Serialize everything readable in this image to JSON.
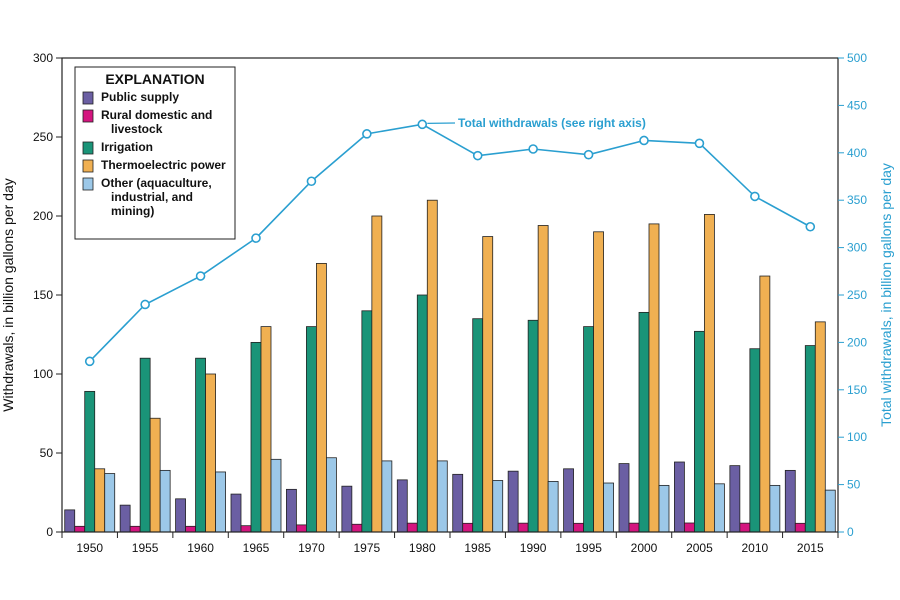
{
  "chart_data": {
    "type": "bar",
    "categories": [
      "1950",
      "1955",
      "1960",
      "1965",
      "1970",
      "1975",
      "1980",
      "1985",
      "1990",
      "1995",
      "2000",
      "2005",
      "2010",
      "2015"
    ],
    "series": [
      {
        "name": "Public supply",
        "color": "#6b5fa3",
        "axis": "left",
        "type": "bar",
        "values": [
          14,
          17,
          21,
          24,
          27,
          29,
          33,
          36.5,
          38.5,
          40,
          43.3,
          44.3,
          42,
          39
        ]
      },
      {
        "name": "Rural domestic and livestock",
        "color": "#d4157f",
        "axis": "left",
        "type": "bar",
        "values": [
          3.6,
          3.6,
          3.6,
          4,
          4.5,
          4.9,
          5.6,
          5.5,
          5.6,
          5.5,
          5.6,
          5.7,
          5.6,
          5.5
        ]
      },
      {
        "name": "Irrigation",
        "color": "#1a9478",
        "axis": "left",
        "type": "bar",
        "values": [
          89,
          110,
          110,
          120,
          130,
          140,
          150,
          135,
          134,
          130,
          139,
          127,
          116,
          118
        ]
      },
      {
        "name": "Thermoelectric power",
        "color": "#f0b052",
        "axis": "left",
        "type": "bar",
        "values": [
          40,
          72,
          100,
          130,
          170,
          200,
          210,
          187,
          194,
          190,
          195,
          201,
          162,
          133
        ]
      },
      {
        "name": "Other (aquaculture, industrial, and mining)",
        "color": "#9cc8e8",
        "axis": "left",
        "type": "bar",
        "values": [
          37,
          39,
          38,
          46,
          47,
          45,
          45,
          32.6,
          32,
          31,
          29.5,
          30.5,
          29.5,
          26.5
        ]
      },
      {
        "name": "Total withdrawals",
        "color": "#2a9fd0",
        "axis": "right",
        "type": "line",
        "values": [
          180,
          240,
          270,
          310,
          370,
          420,
          430,
          397,
          404,
          398,
          413,
          410,
          354,
          322
        ]
      }
    ],
    "ylabel": "Withdrawals, in billion gallons per day",
    "ylim": [
      0,
      300
    ],
    "yticks": [
      "0",
      "50",
      "100",
      "150",
      "200",
      "250",
      "300"
    ],
    "y2label": "Total withdrawals, in billion gallons per day",
    "y2lim": [
      0,
      500
    ],
    "y2ticks": [
      "0",
      "50",
      "100",
      "150",
      "200",
      "250",
      "300",
      "350",
      "400",
      "450",
      "500"
    ],
    "grid": false,
    "legend": {
      "title": "EXPLANATION",
      "placement": "top-left",
      "entries": [
        {
          "series": 0,
          "lines": [
            "Public supply"
          ]
        },
        {
          "series": 1,
          "lines": [
            "Rural domestic and",
            "livestock"
          ]
        },
        {
          "series": 2,
          "lines": [
            "Irrigation"
          ]
        },
        {
          "series": 3,
          "lines": [
            "Thermoelectric power"
          ]
        },
        {
          "series": 4,
          "lines": [
            "Other (aquaculture,",
            "industrial, and",
            "mining)"
          ]
        }
      ]
    },
    "annotation": {
      "bold": "Total withdrawals",
      "normal": " (see right axis)",
      "points_to_x": "1980"
    }
  }
}
